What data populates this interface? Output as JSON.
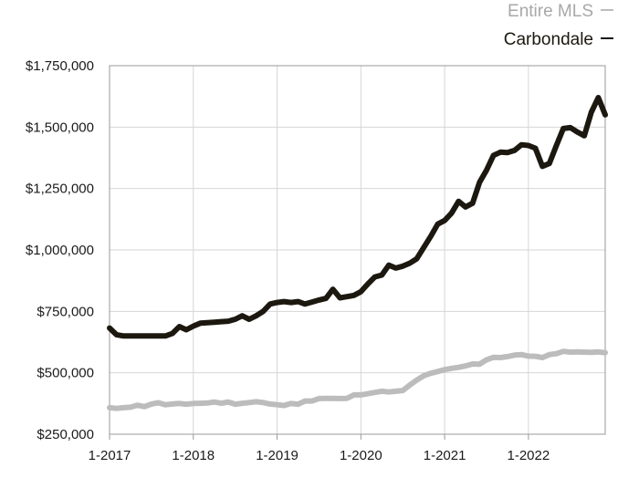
{
  "chart_data": {
    "type": "line",
    "title": "",
    "xlabel": "",
    "ylabel": "",
    "x_range": [
      "2017-01",
      "2022-12"
    ],
    "ylim": [
      250000,
      1750000
    ],
    "y_ticks": [
      250000,
      500000,
      750000,
      1000000,
      1250000,
      1500000,
      1750000
    ],
    "y_tick_labels": [
      "$250,000",
      "$500,000",
      "$750,000",
      "$1,000,000",
      "$1,250,000",
      "$1,500,000",
      "$1,750,000"
    ],
    "x_ticks": [
      "2017-01",
      "2018-01",
      "2019-01",
      "2020-01",
      "2021-01",
      "2022-01"
    ],
    "x_tick_labels": [
      "1-2017",
      "1-2018",
      "1-2019",
      "1-2020",
      "1-2021",
      "1-2022"
    ],
    "grid": true,
    "legend_position": "top-right",
    "x": [
      "2017-01",
      "2017-02",
      "2017-03",
      "2017-04",
      "2017-05",
      "2017-06",
      "2017-07",
      "2017-08",
      "2017-09",
      "2017-10",
      "2017-11",
      "2017-12",
      "2018-01",
      "2018-02",
      "2018-03",
      "2018-04",
      "2018-05",
      "2018-06",
      "2018-07",
      "2018-08",
      "2018-09",
      "2018-10",
      "2018-11",
      "2018-12",
      "2019-01",
      "2019-02",
      "2019-03",
      "2019-04",
      "2019-05",
      "2019-06",
      "2019-07",
      "2019-08",
      "2019-09",
      "2019-10",
      "2019-11",
      "2019-12",
      "2020-01",
      "2020-02",
      "2020-03",
      "2020-04",
      "2020-05",
      "2020-06",
      "2020-07",
      "2020-08",
      "2020-09",
      "2020-10",
      "2020-11",
      "2020-12",
      "2021-01",
      "2021-02",
      "2021-03",
      "2021-04",
      "2021-05",
      "2021-06",
      "2021-07",
      "2021-08",
      "2021-09",
      "2021-10",
      "2021-11",
      "2021-12",
      "2022-01",
      "2022-02",
      "2022-03",
      "2022-04",
      "2022-05",
      "2022-06",
      "2022-07",
      "2022-08",
      "2022-09",
      "2022-10",
      "2022-11",
      "2022-12"
    ],
    "series": [
      {
        "name": "Entire MLS",
        "color": "#bcbcbc",
        "values": [
          358000,
          355000,
          358000,
          360000,
          368000,
          362000,
          373000,
          378000,
          370000,
          373000,
          375000,
          372000,
          375000,
          376000,
          377000,
          381000,
          376000,
          381000,
          372000,
          376000,
          379000,
          382000,
          379000,
          373000,
          370000,
          367000,
          375000,
          372000,
          385000,
          385000,
          395000,
          396000,
          396000,
          395000,
          396000,
          410000,
          410000,
          415000,
          420000,
          425000,
          422000,
          425000,
          428000,
          450000,
          470000,
          488000,
          498000,
          505000,
          513000,
          518000,
          522000,
          528000,
          536000,
          535000,
          553000,
          563000,
          562000,
          566000,
          572000,
          574000,
          568000,
          567000,
          562000,
          574000,
          578000,
          587000,
          584000,
          585000,
          584000,
          583000,
          585000,
          582000
        ]
      },
      {
        "name": "Carbondale",
        "color": "#1c1810",
        "values": [
          682000,
          655000,
          650000,
          650000,
          650000,
          650000,
          650000,
          650000,
          650000,
          660000,
          688000,
          675000,
          690000,
          702000,
          704000,
          706000,
          708000,
          710000,
          718000,
          732000,
          718000,
          732000,
          750000,
          780000,
          786000,
          790000,
          786000,
          790000,
          780000,
          788000,
          796000,
          803000,
          840000,
          805000,
          810000,
          815000,
          830000,
          862000,
          890000,
          898000,
          938000,
          926000,
          934000,
          946000,
          964000,
          1010000,
          1055000,
          1105000,
          1120000,
          1150000,
          1198000,
          1175000,
          1190000,
          1275000,
          1325000,
          1385000,
          1398000,
          1396000,
          1405000,
          1428000,
          1425000,
          1414000,
          1340000,
          1352000,
          1425000,
          1494000,
          1498000,
          1480000,
          1465000,
          1560000,
          1620000,
          1550000
        ]
      }
    ]
  }
}
